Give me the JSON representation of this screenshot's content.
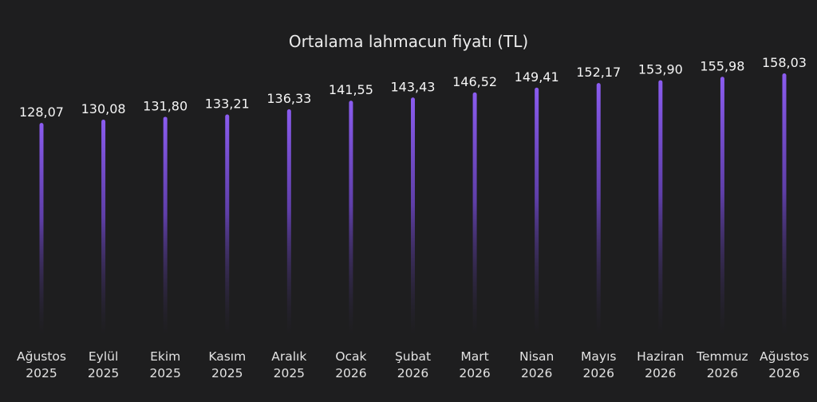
{
  "chart_data": {
    "type": "bar",
    "title": "Ortalama lahmacun fiyatı (TL)",
    "xlabel": "",
    "ylabel": "",
    "ylim": [
      0,
      158.03
    ],
    "grid": false,
    "categories": [
      [
        "Ağustos",
        "2025"
      ],
      [
        "Eylül",
        "2025"
      ],
      [
        "Ekim",
        "2025"
      ],
      [
        "Kasım",
        "2025"
      ],
      [
        "Aralık",
        "2025"
      ],
      [
        "Ocak",
        "2026"
      ],
      [
        "Şubat",
        "2026"
      ],
      [
        "Mart",
        "2026"
      ],
      [
        "Nisan",
        "2026"
      ],
      [
        "Mayıs",
        "2026"
      ],
      [
        "Haziran",
        "2026"
      ],
      [
        "Temmuz",
        "2026"
      ],
      [
        "Ağustos",
        "2026"
      ]
    ],
    "values": [
      128.07,
      130.08,
      131.8,
      133.21,
      136.33,
      141.55,
      143.43,
      146.52,
      149.41,
      152.17,
      153.9,
      155.98,
      158.03
    ],
    "value_labels": [
      "128,07",
      "130,08",
      "131,80",
      "133,21",
      "136,33",
      "141,55",
      "143,43",
      "146,52",
      "149,41",
      "152,17",
      "153,90",
      "155,98",
      "158,03"
    ],
    "colors": {
      "background": "#1e1e1f",
      "bar_top": "#8b5cf0",
      "bar_bottom": "#1e1e1f"
    }
  }
}
